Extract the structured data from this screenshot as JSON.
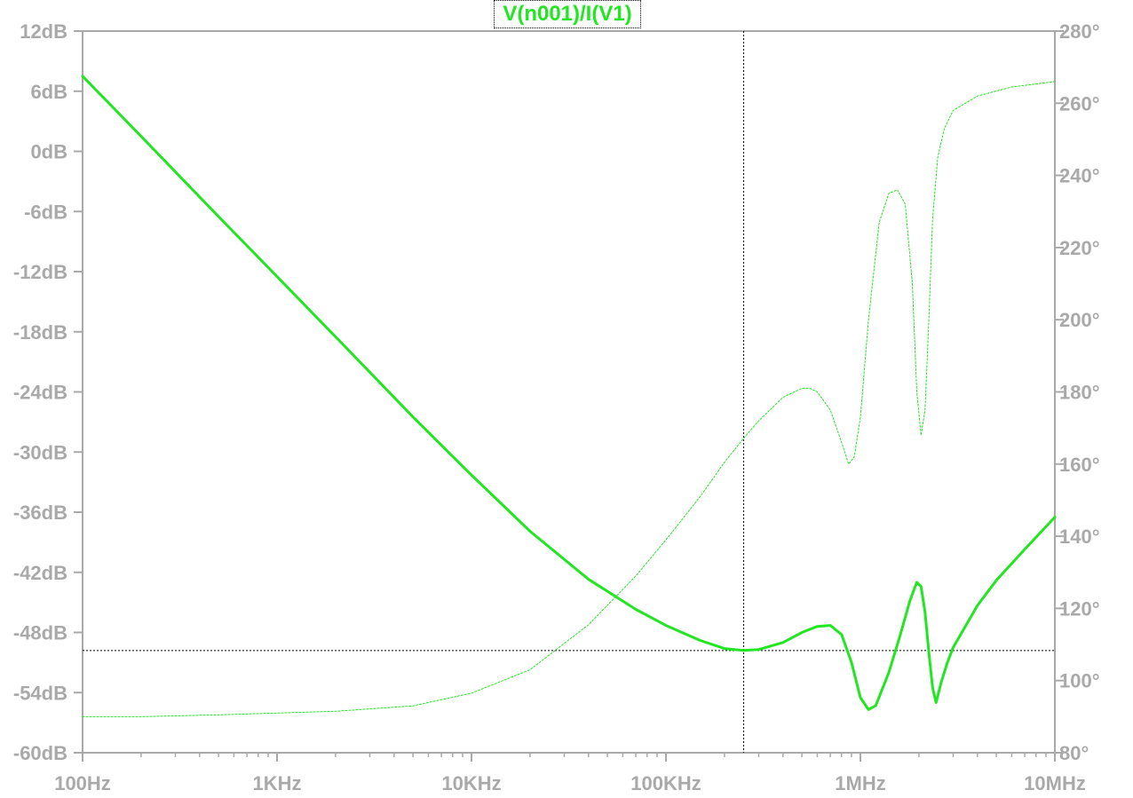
{
  "chart_data": {
    "type": "line",
    "title": "V(n001)/I(V1)",
    "x_scale": "log",
    "x_range_hz": [
      100,
      10000000
    ],
    "x_ticks": [
      {
        "value": 100,
        "label": "100Hz"
      },
      {
        "value": 1000,
        "label": "1KHz"
      },
      {
        "value": 10000,
        "label": "10KHz"
      },
      {
        "value": 100000,
        "label": "100KHz"
      },
      {
        "value": 1000000,
        "label": "1MHz"
      },
      {
        "value": 10000000,
        "label": "10MHz"
      }
    ],
    "y_left": {
      "range": [
        -60,
        12
      ],
      "ticks": [
        {
          "value": 12,
          "label": "12dB"
        },
        {
          "value": 6,
          "label": "6dB"
        },
        {
          "value": 0,
          "label": "0dB"
        },
        {
          "value": -6,
          "label": "-6dB"
        },
        {
          "value": -12,
          "label": "-12dB"
        },
        {
          "value": -18,
          "label": "-18dB"
        },
        {
          "value": -24,
          "label": "-24dB"
        },
        {
          "value": -30,
          "label": "-30dB"
        },
        {
          "value": -36,
          "label": "-36dB"
        },
        {
          "value": -42,
          "label": "-42dB"
        },
        {
          "value": -48,
          "label": "-48dB"
        },
        {
          "value": -54,
          "label": "-54dB"
        },
        {
          "value": -60,
          "label": "-60dB"
        }
      ]
    },
    "y_right": {
      "range": [
        80,
        280
      ],
      "ticks": [
        {
          "value": 280,
          "label": "280°"
        },
        {
          "value": 260,
          "label": "260°"
        },
        {
          "value": 240,
          "label": "240°"
        },
        {
          "value": 220,
          "label": "220°"
        },
        {
          "value": 200,
          "label": "200°"
        },
        {
          "value": 180,
          "label": "180°"
        },
        {
          "value": 160,
          "label": "160°"
        },
        {
          "value": 140,
          "label": "140°"
        },
        {
          "value": 120,
          "label": "120°"
        },
        {
          "value": 100,
          "label": "100°"
        },
        {
          "value": 80,
          "label": "80°"
        }
      ]
    },
    "cursor": {
      "x_hz": 251000,
      "y_db": -49.8
    },
    "series": [
      {
        "kind": "magnitude",
        "axis": "left",
        "style": "solid",
        "color": "#22e622",
        "points": [
          [
            100,
            7.5
          ],
          [
            200,
            1.5
          ],
          [
            500,
            -6.5
          ],
          [
            1000,
            -12.5
          ],
          [
            2000,
            -18.5
          ],
          [
            5000,
            -26.5
          ],
          [
            10000,
            -32.3
          ],
          [
            20000,
            -37.9
          ],
          [
            40000,
            -42.7
          ],
          [
            70000,
            -45.7
          ],
          [
            100000,
            -47.3
          ],
          [
            150000,
            -48.8
          ],
          [
            200000,
            -49.6
          ],
          [
            250000,
            -49.8
          ],
          [
            300000,
            -49.7
          ],
          [
            400000,
            -49.0
          ],
          [
            500000,
            -48.0
          ],
          [
            600000,
            -47.4
          ],
          [
            700000,
            -47.3
          ],
          [
            800000,
            -48.2
          ],
          [
            900000,
            -51.0
          ],
          [
            1000000,
            -54.5
          ],
          [
            1100000,
            -55.7
          ],
          [
            1200000,
            -55.3
          ],
          [
            1400000,
            -52.0
          ],
          [
            1600000,
            -48.3
          ],
          [
            1800000,
            -44.8
          ],
          [
            1950000,
            -43.0
          ],
          [
            2050000,
            -43.4
          ],
          [
            2150000,
            -46.0
          ],
          [
            2250000,
            -50.0
          ],
          [
            2350000,
            -53.5
          ],
          [
            2450000,
            -55.0
          ],
          [
            2600000,
            -53.0
          ],
          [
            2800000,
            -51.0
          ],
          [
            3000000,
            -49.5
          ],
          [
            4000000,
            -45.3
          ],
          [
            5000000,
            -42.8
          ],
          [
            7000000,
            -39.7
          ],
          [
            10000000,
            -36.5
          ]
        ]
      },
      {
        "kind": "phase",
        "axis": "right",
        "style": "dotted",
        "color": "#22e622",
        "points": [
          [
            100,
            90
          ],
          [
            200,
            90
          ],
          [
            500,
            90.5
          ],
          [
            1000,
            91
          ],
          [
            2000,
            91.5
          ],
          [
            5000,
            93
          ],
          [
            10000,
            96.5
          ],
          [
            20000,
            103
          ],
          [
            40000,
            115.5
          ],
          [
            70000,
            129
          ],
          [
            100000,
            139
          ],
          [
            150000,
            151
          ],
          [
            200000,
            160.5
          ],
          [
            250000,
            167
          ],
          [
            300000,
            172
          ],
          [
            400000,
            178.5
          ],
          [
            500000,
            181
          ],
          [
            550000,
            181
          ],
          [
            600000,
            180
          ],
          [
            700000,
            175
          ],
          [
            800000,
            166
          ],
          [
            870000,
            160
          ],
          [
            930000,
            162
          ],
          [
            1000000,
            173
          ],
          [
            1100000,
            200
          ],
          [
            1250000,
            227
          ],
          [
            1400000,
            235
          ],
          [
            1550000,
            236
          ],
          [
            1700000,
            232
          ],
          [
            1850000,
            210
          ],
          [
            1950000,
            180
          ],
          [
            2050000,
            168
          ],
          [
            2150000,
            175
          ],
          [
            2250000,
            200
          ],
          [
            2350000,
            228
          ],
          [
            2500000,
            245
          ],
          [
            2700000,
            253
          ],
          [
            3000000,
            258
          ],
          [
            4000000,
            262
          ],
          [
            6000000,
            264.5
          ],
          [
            10000000,
            266
          ]
        ]
      }
    ]
  }
}
